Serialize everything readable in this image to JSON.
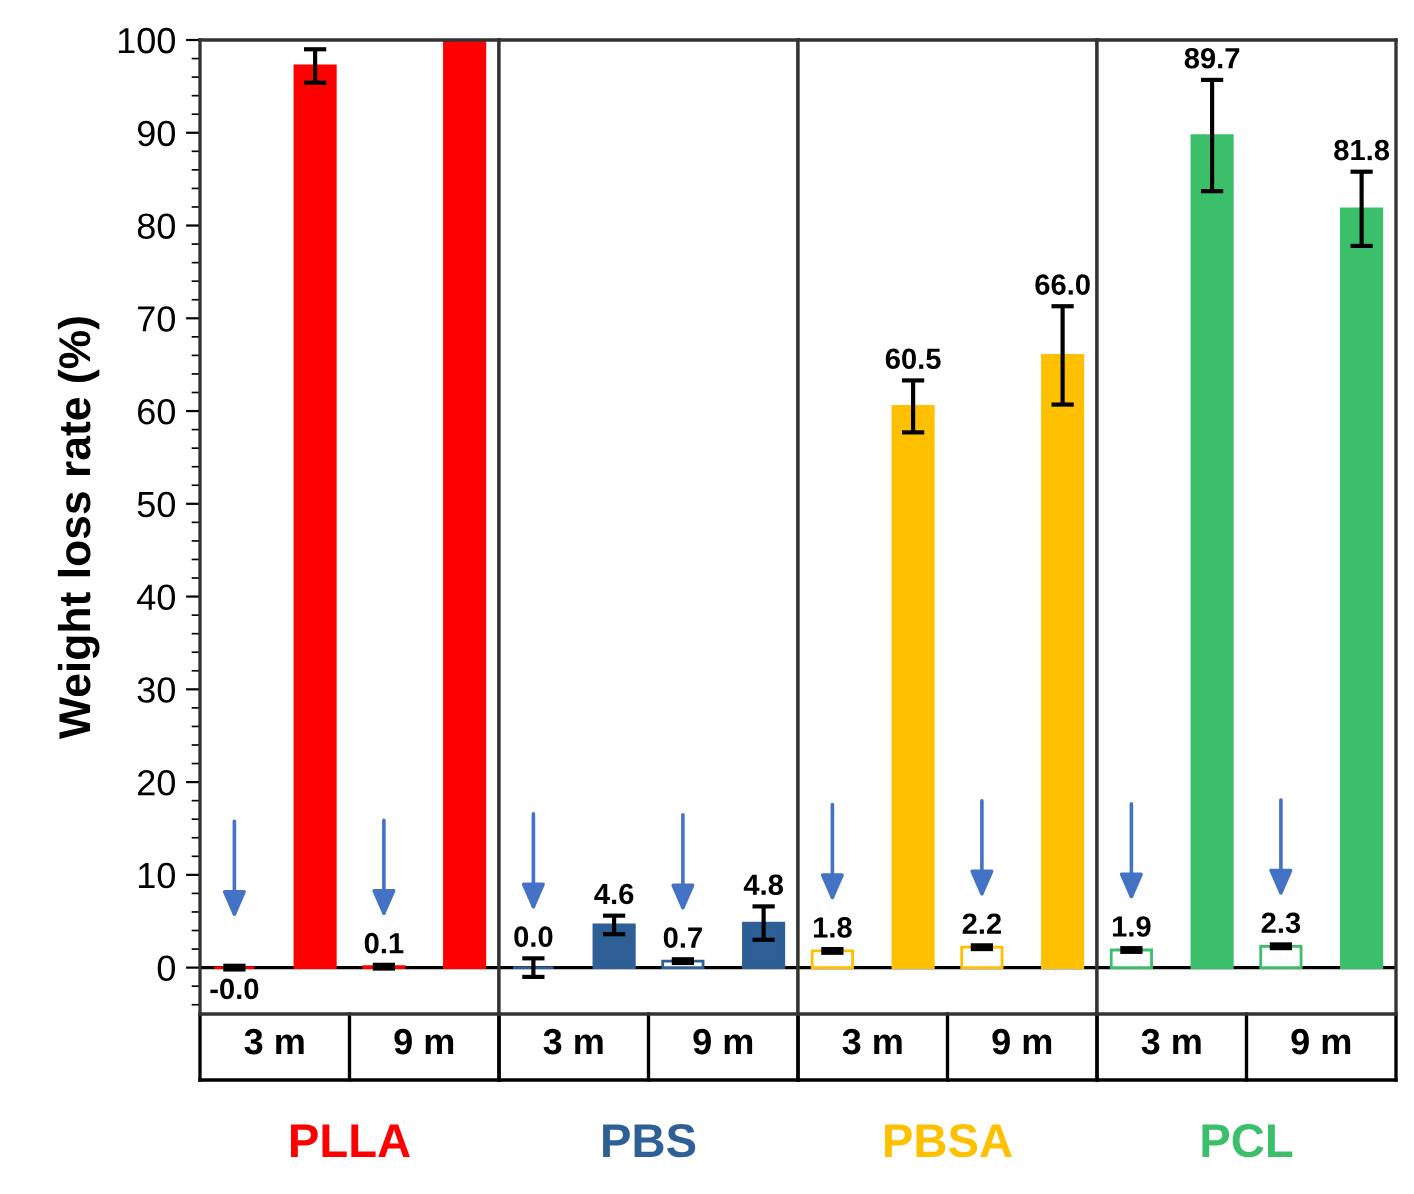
{
  "chart_data": [
    {
      "type": "bar",
      "ylabel": "Weight loss rate (%)",
      "xlabel": "PLLA",
      "categories": [
        "3 m",
        "9 m"
      ],
      "ylim": [
        -5,
        100
      ],
      "yticks": [
        0,
        10,
        20,
        30,
        40,
        50,
        60,
        70,
        80,
        90,
        100
      ],
      "series": [
        {
          "color": "#ff0000",
          "values": [
            -0.0,
            0.1
          ],
          "value_labels": [
            "-0.0",
            "0.1"
          ],
          "errors": [
            0.2,
            0.2
          ]
        },
        {
          "color": "#ff0000",
          "values": [
            97.2,
            100
          ],
          "value_labels": [
            null,
            null
          ],
          "errors": [
            1.8,
            null
          ]
        }
      ]
    },
    {
      "type": "bar",
      "xlabel": "PBS",
      "categories": [
        "3 m",
        "9 m"
      ],
      "ylim": [
        -5,
        100
      ],
      "tick_labels": "x",
      "series": [
        {
          "color": "#2e5f96",
          "values": [
            0.0,
            0.7
          ],
          "value_labels": [
            "0.0",
            "0.7"
          ],
          "errors": [
            1.0,
            0.2
          ]
        },
        {
          "color": "#2e5f96",
          "values": [
            4.6,
            4.8
          ],
          "value_labels": [
            "4.6",
            "4.8"
          ],
          "errors": [
            1.0,
            1.8
          ]
        }
      ]
    },
    {
      "type": "bar",
      "xlabel": "PBSA",
      "categories": [
        "3 m",
        "9 m"
      ],
      "ylim": [
        -5,
        100
      ],
      "tick_labels": "x",
      "series": [
        {
          "color": "#ffc000",
          "values": [
            1.8,
            2.2
          ],
          "value_labels": [
            "1.8",
            "2.2"
          ],
          "errors": [
            0.2,
            0.2
          ]
        },
        {
          "color": "#ffc000",
          "values": [
            60.5,
            66.0
          ],
          "value_labels": [
            "60.5",
            "66.0"
          ],
          "errors": [
            2.8,
            5.3
          ]
        }
      ]
    },
    {
      "type": "bar",
      "xlabel": "PCL",
      "categories": [
        "3 m",
        "9 m"
      ],
      "ylim": [
        -5,
        100
      ],
      "tick_labels": "x",
      "series": [
        {
          "color": "#3cbf6a",
          "values": [
            1.9,
            2.3
          ],
          "value_labels": [
            "1.9",
            "2.3"
          ],
          "errors": [
            0.2,
            0.2
          ]
        },
        {
          "color": "#3cbf6a",
          "values": [
            89.7,
            81.8
          ],
          "value_labels": [
            "89.7",
            "81.8"
          ],
          "errors": [
            6.0,
            4.0
          ]
        }
      ]
    }
  ]
}
